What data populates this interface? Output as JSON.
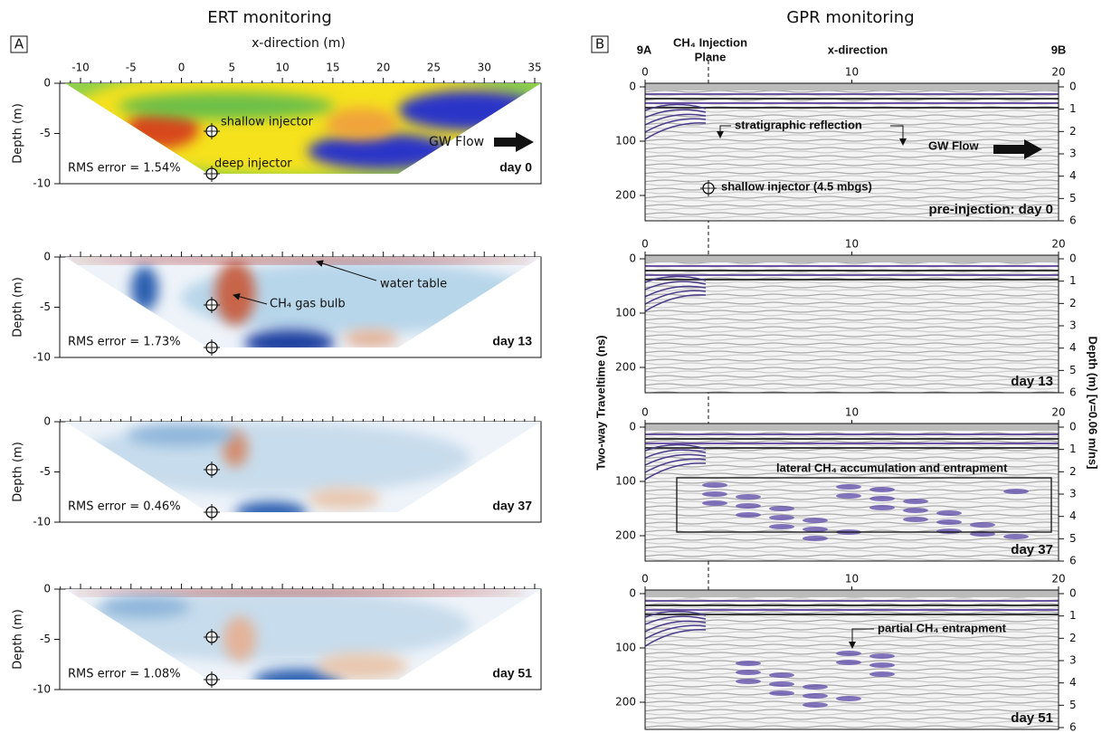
{
  "ert": {
    "title": "ERT monitoring",
    "panel_label": "A",
    "x_axis_label": "x-direction (m)",
    "x_ticks": [
      -10,
      -5,
      0,
      5,
      10,
      15,
      20,
      25,
      30,
      35
    ],
    "y_axis_label": "Depth (m)",
    "y_ticks": [
      0,
      -5,
      -10
    ],
    "panels": [
      {
        "annotations": [
          "shallow injector",
          "deep injector",
          "GW Flow"
        ],
        "rms": "RMS error = 1.54%",
        "day": "day 0"
      },
      {
        "annotations": [
          "water table",
          "CH₄ gas bulb"
        ],
        "rms": "RMS error = 1.73%",
        "day": "day 13"
      },
      {
        "annotations": [],
        "rms": "RMS error = 0.46%",
        "day": "day 37"
      },
      {
        "annotations": [],
        "rms": "RMS error = 1.08%",
        "day": "day 51"
      }
    ]
  },
  "gpr": {
    "title": "GPR monitoring",
    "panel_label": "B",
    "left_end": "9A",
    "right_end": "9B",
    "injection_plane": [
      "CH₄ Injection",
      "Plane"
    ],
    "x_axis_label": "x-direction",
    "x_ticks": [
      0,
      10,
      20
    ],
    "y_axis_label": "Two-way Traveltime (ns)",
    "y_ticks": [
      0,
      100,
      200
    ],
    "y2_axis_label": "Depth (m) [v=0.06 m/ns]",
    "y2_ticks": [
      0,
      1,
      2,
      3,
      4,
      5,
      6
    ],
    "panels": [
      {
        "annotations": [
          "stratigraphic reflection",
          "GW Flow",
          "shallow injector (4.5 mbgs)"
        ],
        "day": "pre-injection: day 0"
      },
      {
        "annotations": [],
        "day": "day 13"
      },
      {
        "annotations": [
          "lateral CH₄ accumulation and entrapment"
        ],
        "day": "day 37"
      },
      {
        "annotations": [
          "partial CH₄ entrapment"
        ],
        "day": "day 51"
      }
    ]
  }
}
